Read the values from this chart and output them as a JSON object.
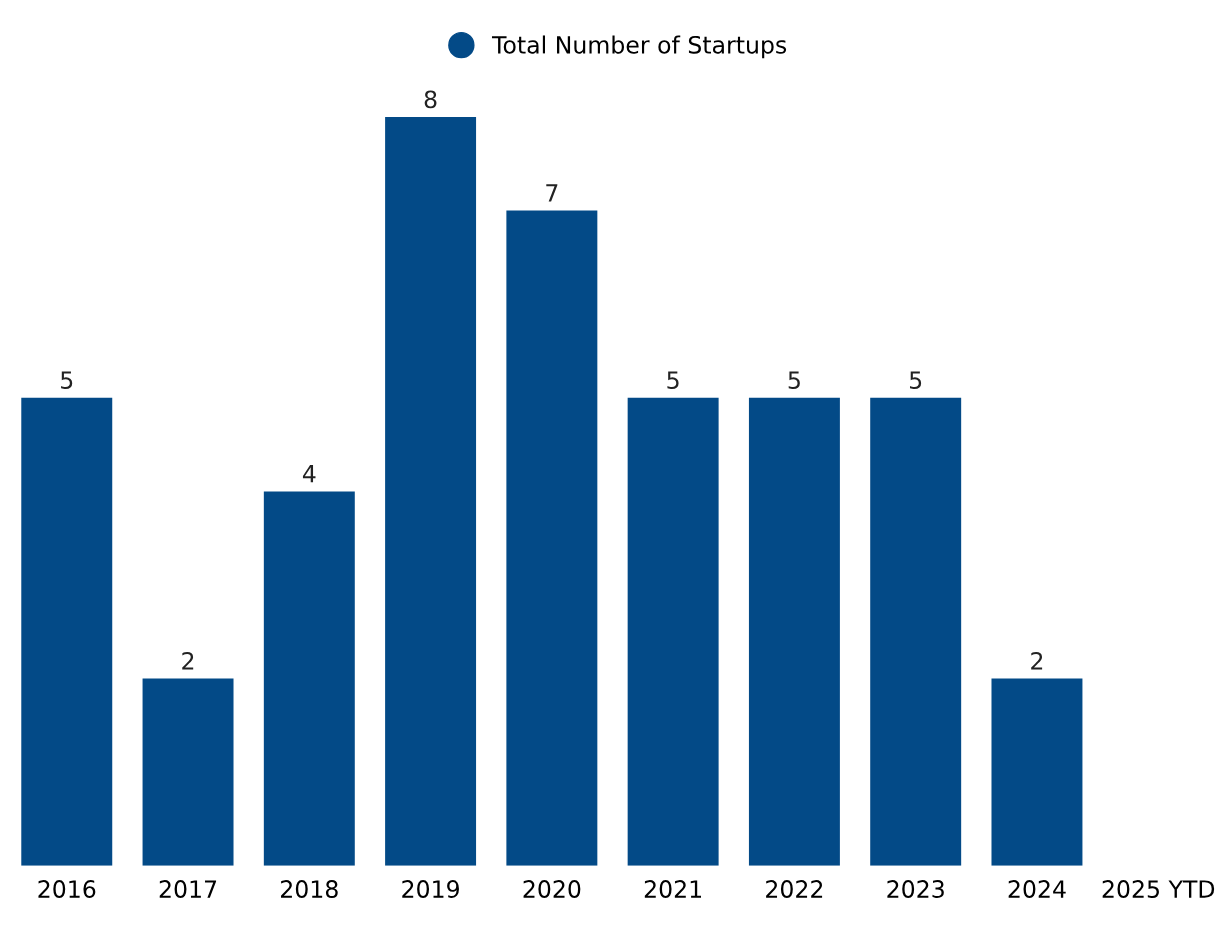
{
  "chart_data": {
    "type": "bar",
    "categories": [
      "2016",
      "2017",
      "2018",
      "2019",
      "2020",
      "2021",
      "2022",
      "2023",
      "2024",
      "2025 YTD"
    ],
    "series": [
      {
        "name": "Total Number of Startups",
        "color": "#034a87",
        "values": [
          5,
          2,
          4,
          8,
          7,
          5,
          5,
          5,
          2,
          null
        ]
      }
    ],
    "data_labels": true,
    "legend": "top",
    "grid": false,
    "tick_labels": "x"
  }
}
